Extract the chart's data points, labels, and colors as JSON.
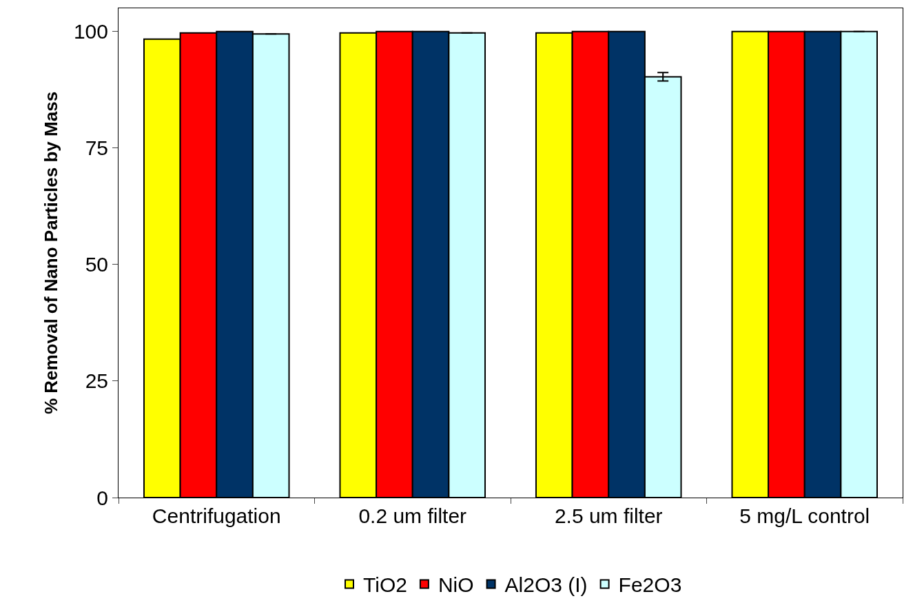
{
  "chart_data": {
    "type": "bar",
    "ylabel": "% Removal of Nano Particles by Mass",
    "categories": [
      "Centrifugation",
      "0.2 um filter",
      "2.5 um filter",
      "5 mg/L control"
    ],
    "series": [
      {
        "name": "TiO2",
        "color": "#ffff00",
        "values": [
          98.4,
          99.7,
          99.7,
          100
        ]
      },
      {
        "name": "NiO",
        "color": "#ff0000",
        "values": [
          99.7,
          100,
          100,
          100
        ]
      },
      {
        "name": "Al2O3 (I)",
        "color": "#003366",
        "values": [
          100,
          100,
          100,
          100
        ]
      },
      {
        "name": "Fe2O3",
        "color": "#ccffff",
        "values": [
          99.5,
          99.7,
          90.3,
          100
        ],
        "errors": [
          null,
          null,
          0.9,
          null
        ]
      }
    ],
    "ylim": [
      0,
      105
    ],
    "yticks": [
      0,
      25,
      50,
      75,
      100
    ],
    "legend": "bottom"
  }
}
